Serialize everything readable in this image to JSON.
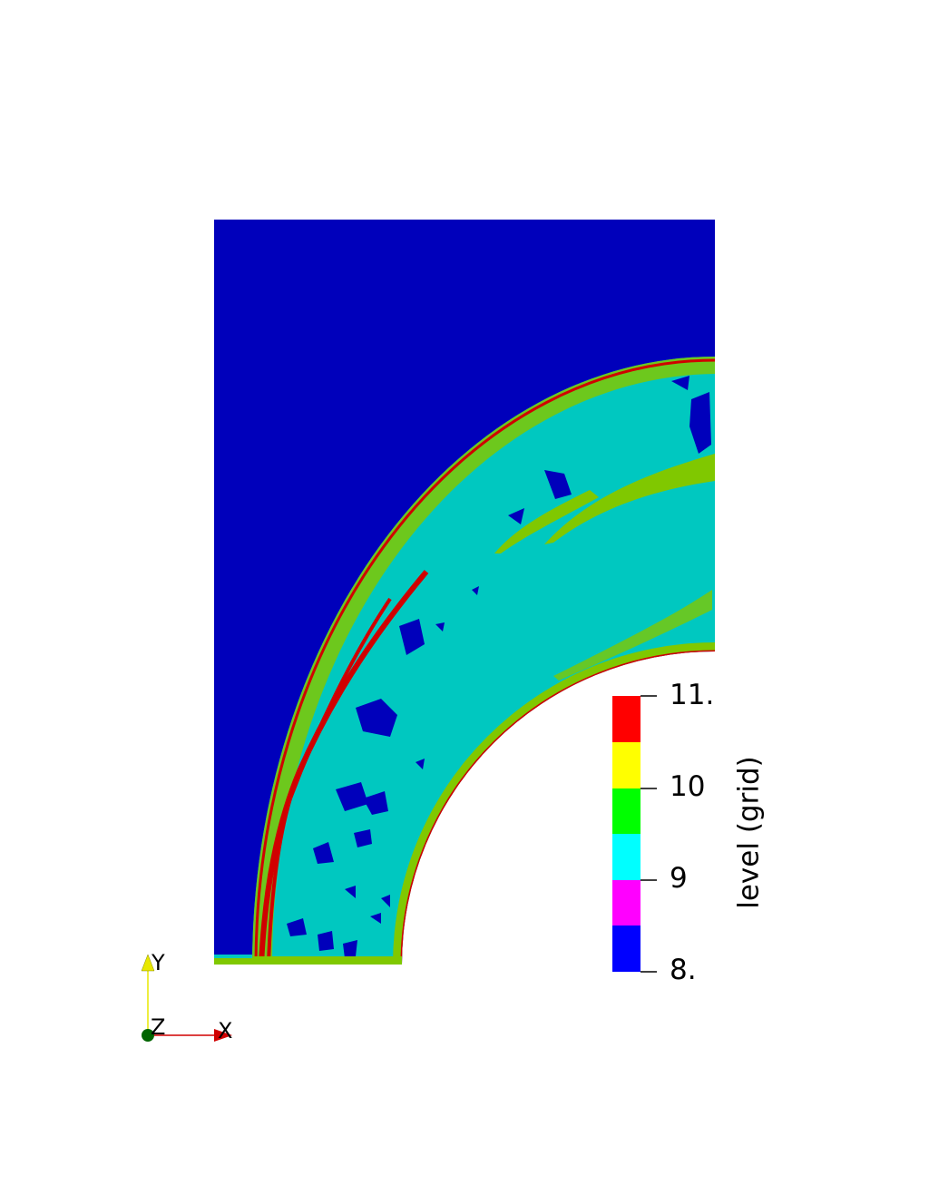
{
  "colorbar": {
    "title": "level (grid)",
    "tick_labels": [
      "11.",
      "10",
      "9",
      "8."
    ],
    "bands": [
      {
        "level": "8-8.5",
        "color": "#0000ff"
      },
      {
        "level": "8.5-9",
        "color": "#ff00ff"
      },
      {
        "level": "9-9.5",
        "color": "#00ffff"
      },
      {
        "level": "9.5-10",
        "color": "#00ff00"
      },
      {
        "level": "10-10.5",
        "color": "#ffff00"
      },
      {
        "level": "10.5-11",
        "color": "#ff0000"
      }
    ]
  },
  "field": {
    "background_color": "#0000bb",
    "level_9_color": "#00c8c0",
    "level_10_color": "#80c800",
    "level_11_color": "#d00000"
  },
  "orientation_axes": {
    "x_label": "X",
    "y_label": "Y",
    "z_label": "Z",
    "x_color": "#d00000",
    "y_color": "#e8e800",
    "z_color": "#006400"
  }
}
